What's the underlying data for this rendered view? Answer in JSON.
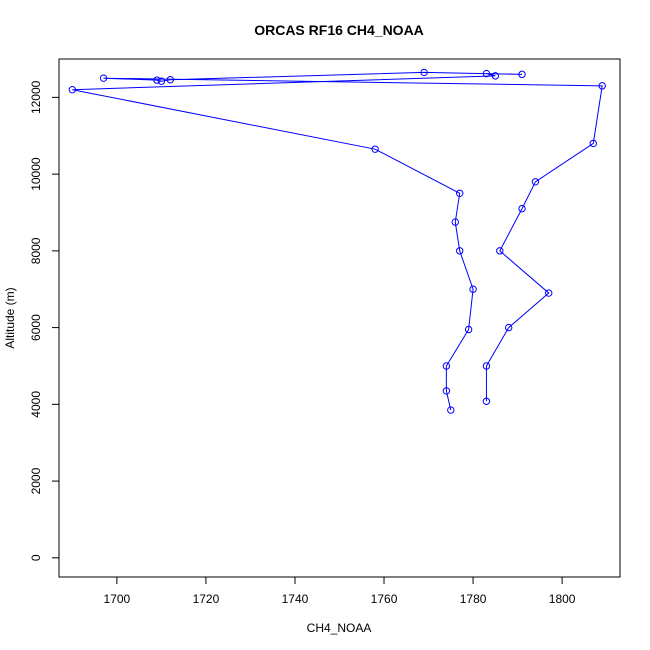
{
  "chart_data": {
    "type": "line",
    "title": "ORCAS RF16 CH4_NOAA",
    "xlabel": "CH4_NOAA",
    "ylabel": "Altitude (m)",
    "xlim": [
      1687,
      1813
    ],
    "ylim": [
      -500,
      13000
    ],
    "x_ticks": [
      1700,
      1720,
      1740,
      1760,
      1780,
      1800
    ],
    "y_ticks": [
      0,
      2000,
      4000,
      6000,
      8000,
      10000,
      12000
    ],
    "grid": false,
    "series": [
      {
        "color": "#0000ff",
        "marker": "open-circle",
        "points": [
          {
            "x": 1783,
            "y": 4080
          },
          {
            "x": 1783,
            "y": 5000
          },
          {
            "x": 1788,
            "y": 6000
          },
          {
            "x": 1797,
            "y": 6900
          },
          {
            "x": 1786,
            "y": 8000
          },
          {
            "x": 1791,
            "y": 9100
          },
          {
            "x": 1794,
            "y": 9800
          },
          {
            "x": 1807,
            "y": 10800
          },
          {
            "x": 1809,
            "y": 12300
          },
          {
            "x": 1697,
            "y": 12500
          },
          {
            "x": 1709,
            "y": 12450
          },
          {
            "x": 1710,
            "y": 12420
          },
          {
            "x": 1712,
            "y": 12460
          },
          {
            "x": 1769,
            "y": 12650
          },
          {
            "x": 1791,
            "y": 12600
          },
          {
            "x": 1783,
            "y": 12620
          },
          {
            "x": 1785,
            "y": 12560
          },
          {
            "x": 1690,
            "y": 12200
          },
          {
            "x": 1758,
            "y": 10650
          },
          {
            "x": 1777,
            "y": 9500
          },
          {
            "x": 1776,
            "y": 8750
          },
          {
            "x": 1777,
            "y": 8000
          },
          {
            "x": 1780,
            "y": 7000
          },
          {
            "x": 1779,
            "y": 5950
          },
          {
            "x": 1774,
            "y": 5000
          },
          {
            "x": 1774,
            "y": 4350
          },
          {
            "x": 1775,
            "y": 3850
          }
        ]
      }
    ]
  }
}
